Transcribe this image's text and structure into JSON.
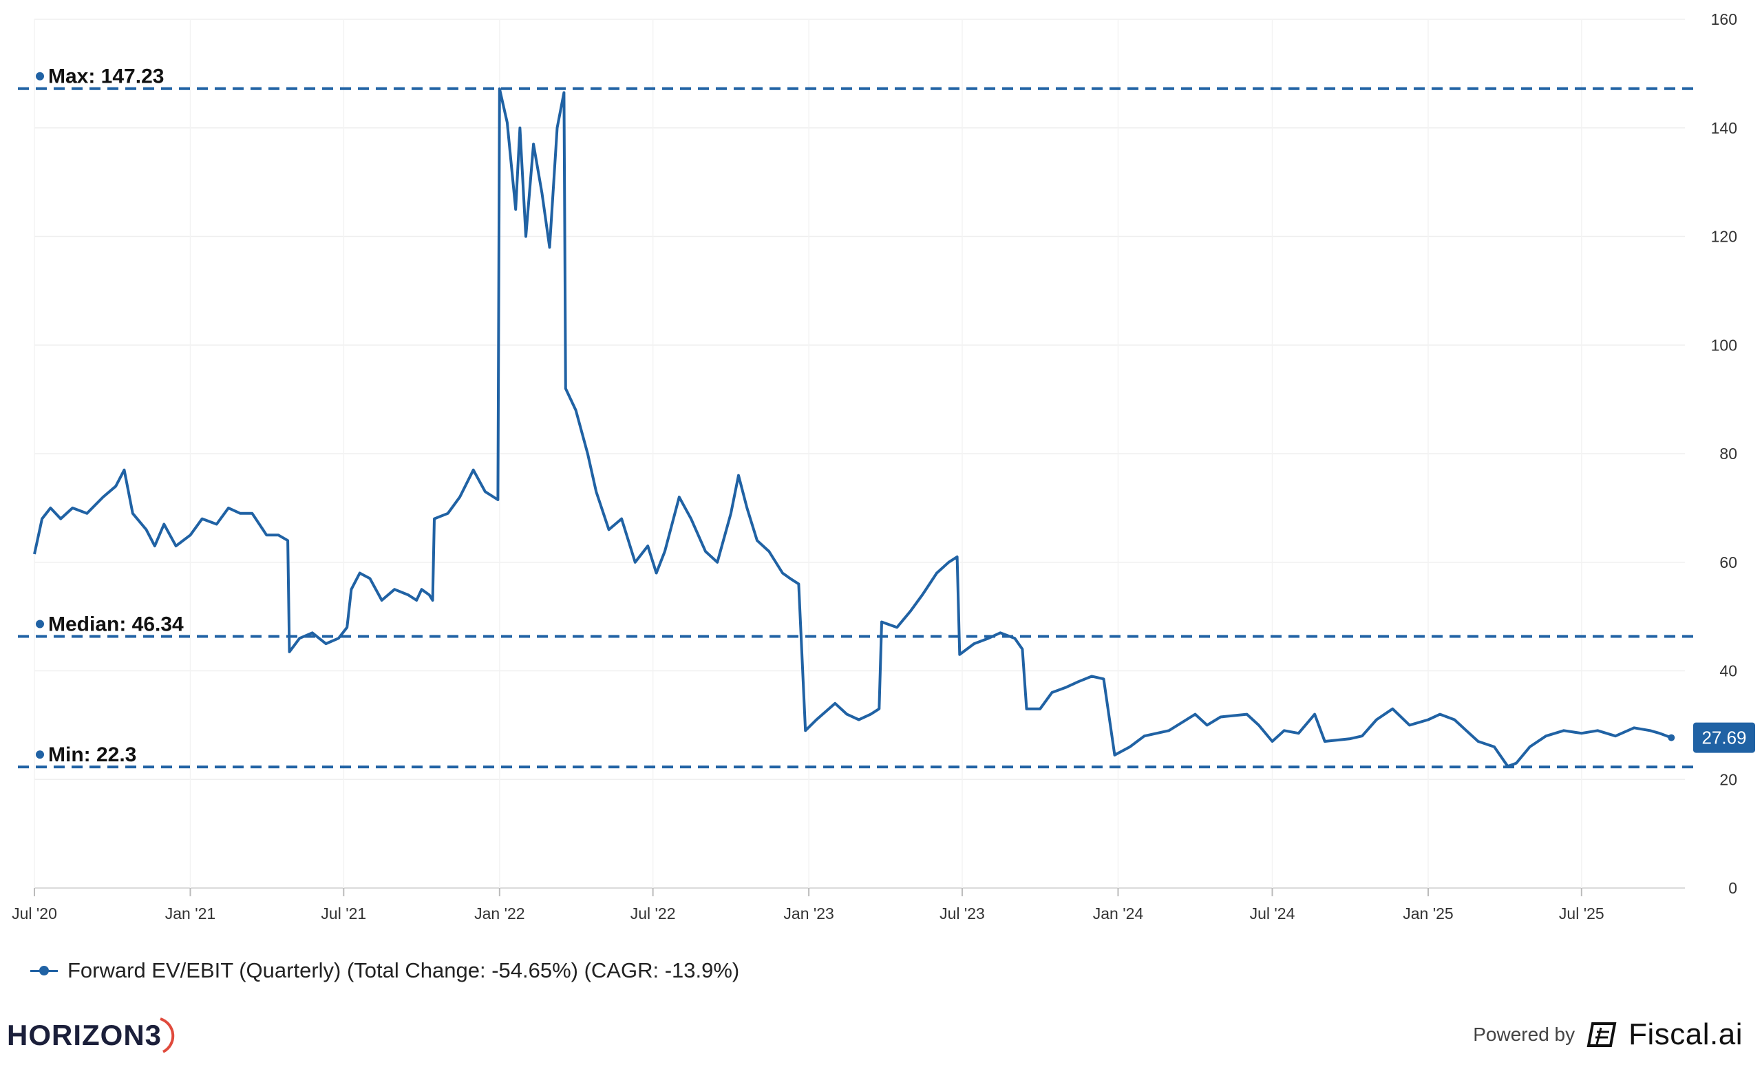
{
  "chart_data": {
    "type": "line",
    "y_axis": {
      "min": 0,
      "max": 160,
      "ticks": [
        "0",
        "20",
        "40",
        "60",
        "80",
        "100",
        "120",
        "140",
        "160"
      ],
      "position": "right"
    },
    "x_axis": {
      "start": "2020-07-01",
      "end": "2025-10-15",
      "ticks": [
        {
          "label": "Jul '20",
          "date": "2020-07-01"
        },
        {
          "label": "Jan '21",
          "date": "2021-01-01"
        },
        {
          "label": "Jul '21",
          "date": "2021-07-01"
        },
        {
          "label": "Jan '22",
          "date": "2022-01-01"
        },
        {
          "label": "Jul '22",
          "date": "2022-07-01"
        },
        {
          "label": "Jan '23",
          "date": "2023-01-01"
        },
        {
          "label": "Jul '23",
          "date": "2023-07-01"
        },
        {
          "label": "Jan '24",
          "date": "2024-01-01"
        },
        {
          "label": "Jul '24",
          "date": "2024-07-01"
        },
        {
          "label": "Jan '25",
          "date": "2025-01-01"
        },
        {
          "label": "Jul '25",
          "date": "2025-07-01"
        }
      ]
    },
    "grid": true,
    "reference_lines": [
      {
        "label": "Max: 147.23",
        "value": 147.23
      },
      {
        "label": "Median: 46.34",
        "value": 46.34
      },
      {
        "label": "Min: 22.3",
        "value": 22.3
      }
    ],
    "last_value_label": "27.69",
    "series": [
      {
        "name": "Forward EV/EBIT (Quarterly) (Total Change: -54.65%) (CAGR: -13.9%)",
        "color": "#2062A4",
        "points": [
          [
            "2020-07-01",
            61.5
          ],
          [
            "2020-07-10",
            68
          ],
          [
            "2020-07-20",
            70
          ],
          [
            "2020-08-01",
            68
          ],
          [
            "2020-08-15",
            70
          ],
          [
            "2020-09-01",
            69
          ],
          [
            "2020-09-20",
            72
          ],
          [
            "2020-10-05",
            74
          ],
          [
            "2020-10-15",
            77
          ],
          [
            "2020-10-25",
            69
          ],
          [
            "2020-11-10",
            66
          ],
          [
            "2020-11-20",
            63
          ],
          [
            "2020-12-01",
            67
          ],
          [
            "2020-12-15",
            63
          ],
          [
            "2021-01-01",
            65
          ],
          [
            "2021-01-15",
            68
          ],
          [
            "2021-02-01",
            67
          ],
          [
            "2021-02-15",
            70
          ],
          [
            "2021-03-01",
            69
          ],
          [
            "2021-03-15",
            69
          ],
          [
            "2021-04-01",
            65
          ],
          [
            "2021-04-15",
            65
          ],
          [
            "2021-04-26",
            64
          ],
          [
            "2021-04-28",
            43.5
          ],
          [
            "2021-05-10",
            46
          ],
          [
            "2021-05-25",
            47
          ],
          [
            "2021-06-10",
            45
          ],
          [
            "2021-06-25",
            46
          ],
          [
            "2021-07-05",
            48
          ],
          [
            "2021-07-10",
            55
          ],
          [
            "2021-07-20",
            58
          ],
          [
            "2021-08-01",
            57
          ],
          [
            "2021-08-15",
            53
          ],
          [
            "2021-08-30",
            55
          ],
          [
            "2021-09-15",
            54
          ],
          [
            "2021-09-25",
            53
          ],
          [
            "2021-10-01",
            55
          ],
          [
            "2021-10-10",
            54
          ],
          [
            "2021-10-14",
            53
          ],
          [
            "2021-10-16",
            68
          ],
          [
            "2021-11-01",
            69
          ],
          [
            "2021-11-15",
            72
          ],
          [
            "2021-12-01",
            77
          ],
          [
            "2021-12-15",
            73
          ],
          [
            "2021-12-30",
            71.5
          ],
          [
            "2022-01-01",
            147.2
          ],
          [
            "2022-01-10",
            141
          ],
          [
            "2022-01-20",
            125
          ],
          [
            "2022-01-25",
            140
          ],
          [
            "2022-02-01",
            120
          ],
          [
            "2022-02-10",
            137
          ],
          [
            "2022-02-20",
            128
          ],
          [
            "2022-03-01",
            118
          ],
          [
            "2022-03-10",
            140
          ],
          [
            "2022-03-18",
            146.5
          ],
          [
            "2022-03-20",
            92
          ],
          [
            "2022-04-01",
            88
          ],
          [
            "2022-04-15",
            80
          ],
          [
            "2022-04-25",
            73
          ],
          [
            "2022-05-10",
            66
          ],
          [
            "2022-05-25",
            68
          ],
          [
            "2022-06-10",
            60
          ],
          [
            "2022-06-25",
            63
          ],
          [
            "2022-07-05",
            58
          ],
          [
            "2022-07-15",
            62
          ],
          [
            "2022-08-01",
            72
          ],
          [
            "2022-08-15",
            68
          ],
          [
            "2022-09-01",
            62
          ],
          [
            "2022-09-15",
            60
          ],
          [
            "2022-10-01",
            69
          ],
          [
            "2022-10-10",
            76
          ],
          [
            "2022-10-20",
            70
          ],
          [
            "2022-11-01",
            64
          ],
          [
            "2022-11-15",
            62
          ],
          [
            "2022-12-01",
            58
          ],
          [
            "2022-12-10",
            57
          ],
          [
            "2022-12-20",
            56
          ],
          [
            "2022-12-28",
            29
          ],
          [
            "2023-01-10",
            31
          ],
          [
            "2023-02-01",
            34
          ],
          [
            "2023-02-15",
            32
          ],
          [
            "2023-03-01",
            31
          ],
          [
            "2023-03-15",
            32
          ],
          [
            "2023-03-25",
            33
          ],
          [
            "2023-03-28",
            49
          ],
          [
            "2023-04-15",
            48
          ],
          [
            "2023-05-01",
            51
          ],
          [
            "2023-05-15",
            54
          ],
          [
            "2023-06-01",
            58
          ],
          [
            "2023-06-15",
            60
          ],
          [
            "2023-06-25",
            61
          ],
          [
            "2023-06-28",
            43
          ],
          [
            "2023-07-15",
            45
          ],
          [
            "2023-08-01",
            46
          ],
          [
            "2023-08-15",
            47
          ],
          [
            "2023-09-01",
            46
          ],
          [
            "2023-09-10",
            44
          ],
          [
            "2023-09-15",
            33
          ],
          [
            "2023-10-01",
            33
          ],
          [
            "2023-10-15",
            36
          ],
          [
            "2023-11-01",
            37
          ],
          [
            "2023-11-15",
            38
          ],
          [
            "2023-12-01",
            39
          ],
          [
            "2023-12-15",
            38.5
          ],
          [
            "2023-12-28",
            24.5
          ],
          [
            "2024-01-15",
            26
          ],
          [
            "2024-02-01",
            28
          ],
          [
            "2024-03-01",
            29
          ],
          [
            "2024-04-01",
            32
          ],
          [
            "2024-04-15",
            30
          ],
          [
            "2024-05-01",
            31.5
          ],
          [
            "2024-06-01",
            32
          ],
          [
            "2024-06-15",
            30
          ],
          [
            "2024-07-01",
            27
          ],
          [
            "2024-07-15",
            29
          ],
          [
            "2024-08-01",
            28.5
          ],
          [
            "2024-08-20",
            32
          ],
          [
            "2024-09-01",
            27
          ],
          [
            "2024-10-01",
            27.5
          ],
          [
            "2024-10-15",
            28
          ],
          [
            "2024-11-01",
            31
          ],
          [
            "2024-11-20",
            33
          ],
          [
            "2024-12-10",
            30
          ],
          [
            "2025-01-01",
            31
          ],
          [
            "2025-01-15",
            32
          ],
          [
            "2025-02-01",
            31
          ],
          [
            "2025-02-15",
            29
          ],
          [
            "2025-03-01",
            27
          ],
          [
            "2025-03-20",
            26
          ],
          [
            "2025-04-05",
            22.4
          ],
          [
            "2025-04-15",
            23
          ],
          [
            "2025-05-01",
            26
          ],
          [
            "2025-05-20",
            28
          ],
          [
            "2025-06-10",
            29
          ],
          [
            "2025-07-01",
            28.5
          ],
          [
            "2025-07-20",
            29
          ],
          [
            "2025-08-10",
            28
          ],
          [
            "2025-09-01",
            29.5
          ],
          [
            "2025-09-20",
            29
          ],
          [
            "2025-10-01",
            28.5
          ],
          [
            "2025-10-15",
            27.69
          ]
        ]
      }
    ]
  },
  "legend": {
    "label": "Forward EV/EBIT (Quarterly) (Total Change: -54.65%) (CAGR: -13.9%)"
  },
  "branding": {
    "left_logo_text": "HORIZON3",
    "powered_by": "Powered by",
    "fiscal_logo": "Fiscal.ai",
    "left_logo_icon": "horizon-arc-icon",
    "right_logo_icon": "fiscal-ledger-icon"
  }
}
